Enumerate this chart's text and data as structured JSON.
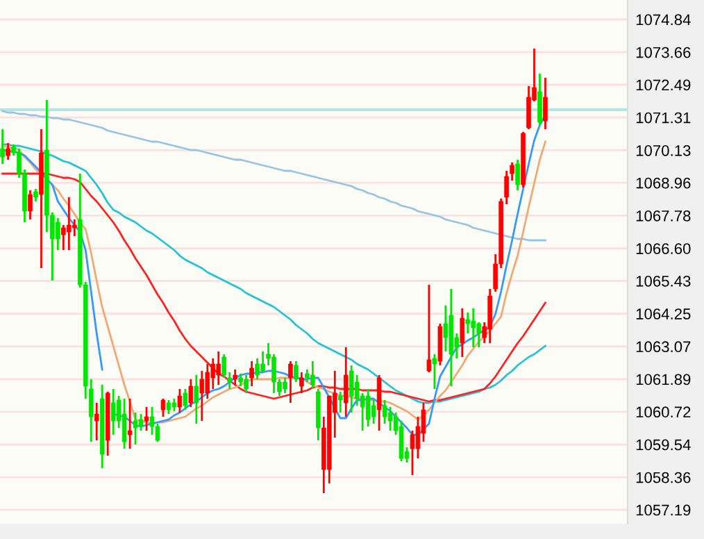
{
  "chart_data": {
    "type": "candlestick",
    "categories": [
      null,
      null,
      null,
      null,
      null,
      null,
      null,
      null,
      null,
      null,
      null,
      null,
      null,
      null,
      null,
      null,
      null,
      null,
      null,
      null,
      null,
      null,
      null,
      null,
      null,
      null,
      null,
      null,
      null,
      null,
      null,
      null,
      null,
      null,
      null,
      null,
      null,
      null,
      null,
      null,
      null,
      null,
      null,
      null,
      null,
      null,
      null,
      null,
      null,
      null,
      null,
      null,
      null,
      null,
      null,
      null,
      null,
      null,
      null,
      null,
      null,
      null,
      null,
      null,
      null,
      null,
      null,
      null,
      null,
      null,
      null,
      null,
      null,
      null,
      null,
      null,
      null,
      null,
      null,
      null,
      null,
      null,
      null,
      null,
      null,
      null,
      null,
      null,
      null,
      null,
      null,
      null,
      null,
      null,
      null,
      null,
      null,
      null,
      null
    ],
    "ohlc": [
      [
        1070.19,
        1070.89,
        1069.64,
        1069.89
      ],
      [
        1069.94,
        1070.39,
        1069.79,
        1070.19
      ],
      [
        1070.24,
        1070.34,
        1069.94,
        1070.04
      ],
      [
        1070.04,
        1070.19,
        1069.14,
        1069.29
      ],
      [
        1069.29,
        1069.44,
        1067.54,
        1067.94
      ],
      [
        1067.94,
        1068.69,
        1067.64,
        1068.54
      ],
      [
        1068.64,
        1068.74,
        1068.29,
        1068.44
      ],
      [
        1068.54,
        1070.89,
        1065.89,
        1070.04
      ],
      [
        1070.14,
        1071.94,
        1067.19,
        1067.79
      ],
      [
        1067.79,
        1067.89,
        1065.44,
        1066.94
      ],
      [
        1067.54,
        1067.69,
        1066.54,
        1066.94
      ],
      [
        1067.09,
        1067.44,
        1066.54,
        1067.34
      ],
      [
        1067.19,
        1068.44,
        1066.54,
        1067.44
      ],
      [
        1067.34,
        1067.64,
        1067.04,
        1067.44
      ],
      [
        1067.64,
        1069.29,
        1065.19,
        1065.29
      ],
      [
        1065.29,
        1065.39,
        1061.19,
        1061.64
      ],
      [
        1061.54,
        1061.89,
        1059.64,
        1060.54
      ],
      [
        1060.39,
        1061.04,
        1059.69,
        1060.64
      ],
      [
        1061.19,
        1061.69,
        1058.69,
        1059.19
      ],
      [
        1059.69,
        1061.44,
        1059.14,
        1061.39
      ],
      [
        1061.04,
        1061.54,
        1059.89,
        1060.39
      ],
      [
        1061.14,
        1061.29,
        1060.14,
        1060.39
      ],
      [
        1060.64,
        1061.19,
        1059.39,
        1059.64
      ],
      [
        1059.89,
        1061.19,
        1059.39,
        1060.04
      ],
      [
        1060.39,
        1060.69,
        1059.54,
        1060.14
      ],
      [
        1060.44,
        1060.64,
        1060.04,
        1060.19
      ],
      [
        1060.39,
        1060.89,
        1060.04,
        1060.54
      ],
      [
        1060.54,
        1060.89,
        1059.89,
        1060.19
      ],
      [
        1060.19,
        1060.29,
        1059.64,
        1059.69
      ],
      [
        1060.79,
        1061.19,
        1060.54,
        1061.14
      ],
      [
        1061.04,
        1061.14,
        1060.64,
        1060.79
      ],
      [
        1061.04,
        1061.19,
        1060.74,
        1060.89
      ],
      [
        1060.89,
        1061.54,
        1060.69,
        1061.29
      ],
      [
        1061.39,
        1061.54,
        1060.79,
        1060.94
      ],
      [
        1061.04,
        1061.89,
        1060.89,
        1061.64
      ],
      [
        1061.64,
        1062.04,
        1060.29,
        1061.04
      ],
      [
        1061.39,
        1062.19,
        1060.39,
        1061.89
      ],
      [
        1061.39,
        1062.44,
        1061.19,
        1062.14
      ],
      [
        1061.94,
        1062.64,
        1061.54,
        1062.44
      ],
      [
        1062.04,
        1062.89,
        1061.69,
        1062.44
      ],
      [
        1062.69,
        1062.79,
        1061.94,
        1062.04
      ],
      [
        1061.94,
        1062.14,
        1061.54,
        1061.79
      ],
      [
        1061.89,
        1062.24,
        1061.69,
        1062.04
      ],
      [
        1061.94,
        1062.09,
        1061.64,
        1061.79
      ],
      [
        1061.89,
        1062.04,
        1061.39,
        1061.54
      ],
      [
        1061.94,
        1062.54,
        1061.64,
        1062.29
      ],
      [
        1062.44,
        1062.64,
        1061.89,
        1062.04
      ],
      [
        1062.44,
        1062.89,
        1062.14,
        1062.19
      ],
      [
        1062.79,
        1063.19,
        1062.39,
        1062.64
      ],
      [
        1062.69,
        1062.79,
        1061.39,
        1061.79
      ],
      [
        1061.79,
        1061.89,
        1061.29,
        1061.44
      ],
      [
        1061.79,
        1061.94,
        1061.39,
        1061.54
      ],
      [
        1061.94,
        1062.54,
        1061.04,
        1062.44
      ],
      [
        1062.39,
        1062.54,
        1061.79,
        1061.89
      ],
      [
        1061.64,
        1062.14,
        1061.39,
        1061.94
      ],
      [
        1062.09,
        1062.24,
        1061.79,
        1061.94
      ],
      [
        1062.04,
        1062.54,
        1061.54,
        1061.69
      ],
      [
        1061.44,
        1061.54,
        1059.69,
        1060.14
      ],
      [
        1058.64,
        1060.54,
        1057.79,
        1060.14
      ],
      [
        1058.64,
        1061.29,
        1058.14,
        1061.29
      ],
      [
        1060.69,
        1062.19,
        1059.79,
        1061.39
      ],
      [
        1061.29,
        1061.44,
        1060.69,
        1061.14
      ],
      [
        1061.04,
        1063.04,
        1060.54,
        1062.04
      ],
      [
        1062.19,
        1062.39,
        1060.69,
        1061.29
      ],
      [
        1061.79,
        1062.04,
        1060.94,
        1061.19
      ],
      [
        1061.29,
        1061.39,
        1060.04,
        1060.89
      ],
      [
        1061.29,
        1061.54,
        1060.19,
        1060.44
      ],
      [
        1060.94,
        1061.14,
        1060.29,
        1060.54
      ],
      [
        1060.79,
        1062.04,
        1060.04,
        1061.94
      ],
      [
        1060.94,
        1061.14,
        1060.29,
        1060.54
      ],
      [
        1060.69,
        1060.89,
        1060.04,
        1060.39
      ],
      [
        1060.54,
        1060.69,
        1059.89,
        1060.04
      ],
      [
        1060.19,
        1060.39,
        1058.94,
        1059.04
      ],
      [
        1059.29,
        1059.44,
        1058.89,
        1059.04
      ],
      [
        1059.39,
        1060.04,
        1058.44,
        1059.89
      ],
      [
        1059.39,
        1060.54,
        1059.04,
        1060.19
      ],
      [
        1059.94,
        1061.04,
        1059.64,
        1060.79
      ],
      [
        1062.19,
        1065.29,
        1062.14,
        1062.59
      ],
      [
        1062.64,
        1062.79,
        1061.54,
        1062.44
      ],
      [
        1062.54,
        1063.89,
        1062.39,
        1063.79
      ],
      [
        1063.89,
        1064.54,
        1062.89,
        1063.39
      ],
      [
        1064.19,
        1065.14,
        1061.64,
        1062.79
      ],
      [
        1063.39,
        1063.54,
        1062.64,
        1063.04
      ],
      [
        1063.19,
        1064.44,
        1062.69,
        1064.09
      ],
      [
        1064.04,
        1064.29,
        1063.54,
        1063.89
      ],
      [
        1063.99,
        1064.44,
        1063.04,
        1063.74
      ],
      [
        1063.89,
        1063.94,
        1063.04,
        1063.54
      ],
      [
        1063.39,
        1063.94,
        1063.19,
        1063.79
      ],
      [
        1063.69,
        1065.14,
        1063.19,
        1064.89
      ],
      [
        1065.14,
        1066.39,
        1065.04,
        1066.04
      ],
      [
        1066.04,
        1068.39,
        1065.89,
        1068.29
      ],
      [
        1068.44,
        1069.39,
        1068.19,
        1069.19
      ],
      [
        1069.29,
        1069.69,
        1069.04,
        1069.59
      ],
      [
        1069.64,
        1069.79,
        1068.69,
        1068.89
      ],
      [
        1068.89,
        1070.79,
        1068.79,
        1070.74
      ],
      [
        1070.94,
        1072.44,
        1070.89,
        1072.04
      ],
      [
        1071.94,
        1073.79,
        1071.89,
        1072.39
      ],
      [
        1072.24,
        1072.89,
        1071.04,
        1071.14
      ],
      [
        1071.19,
        1072.74,
        1070.89,
        1072.04
      ]
    ],
    "colors": [
      "#00e600",
      "#ff0000",
      "#00e600",
      "#00e600",
      "#00e600",
      "#ff0000",
      "#00e600",
      "#ff0000",
      "#00e600",
      "#00e600",
      "#00e600",
      "#ff0000",
      "#ff0000",
      "#ff0000",
      "#00e600",
      "#00e600",
      "#00e600",
      "#ff0000",
      "#00e600",
      "#ff0000",
      "#00e600",
      "#00e600",
      "#00e600",
      "#ff0000",
      "#00e600",
      "#00e600",
      "#ff0000",
      "#00e600",
      "#00e600",
      "#ff0000",
      "#00e600",
      "#00e600",
      "#ff0000",
      "#00e600",
      "#ff0000",
      "#00e600",
      "#ff0000",
      "#ff0000",
      "#ff0000",
      "#ff0000",
      "#00e600",
      "#00e600",
      "#ff0000",
      "#00e600",
      "#00e600",
      "#ff0000",
      "#00e600",
      "#00e600",
      "#00e600",
      "#00e600",
      "#00e600",
      "#00e600",
      "#ff0000",
      "#00e600",
      "#ff0000",
      "#00e600",
      "#00e600",
      "#00e600",
      "#ff0000",
      "#ff0000",
      "#ff0000",
      "#00e600",
      "#ff0000",
      "#00e600",
      "#00e600",
      "#00e600",
      "#00e600",
      "#00e600",
      "#ff0000",
      "#00e600",
      "#00e600",
      "#00e600",
      "#00e600",
      "#00e600",
      "#ff0000",
      "#ff0000",
      "#ff0000",
      "#ff0000",
      "#00e600",
      "#ff0000",
      "#00e600",
      "#00e600",
      "#00e600",
      "#ff0000",
      "#00e600",
      "#00e600",
      "#00e600",
      "#ff0000",
      "#ff0000",
      "#ff0000",
      "#ff0000",
      "#ff0000",
      "#ff0000",
      "#00e600",
      "#ff0000",
      "#ff0000",
      "#ff0000",
      "#00e600",
      "#ff0000"
    ],
    "series": [
      {
        "type": "line",
        "color": "#98c4e0",
        "values": [
          1071.54,
          1071.49,
          1071.49,
          1071.44,
          1071.44,
          1071.39,
          1071.39,
          1071.34,
          1071.34,
          1071.29,
          1071.29,
          1071.24,
          1071.24,
          1071.19,
          1071.14,
          1071.09,
          1071.04,
          1070.99,
          1070.94,
          1070.84,
          1070.79,
          1070.74,
          1070.69,
          1070.64,
          1070.59,
          1070.54,
          1070.49,
          1070.44,
          1070.44,
          1070.39,
          1070.34,
          1070.29,
          1070.24,
          1070.19,
          1070.14,
          1070.14,
          1070.09,
          1070.04,
          1069.99,
          1069.94,
          1069.89,
          1069.84,
          1069.79,
          1069.79,
          1069.74,
          1069.69,
          1069.64,
          1069.59,
          1069.54,
          1069.49,
          1069.44,
          1069.39,
          1069.39,
          1069.34,
          1069.29,
          1069.24,
          1069.19,
          1069.14,
          1069.09,
          1069.04,
          1068.99,
          1068.94,
          1068.89,
          1068.84,
          1068.74,
          1068.69,
          1068.59,
          1068.54,
          1068.44,
          1068.39,
          1068.29,
          1068.24,
          1068.14,
          1068.09,
          1068.04,
          1067.94,
          1067.89,
          1067.84,
          1067.79,
          1067.74,
          1067.64,
          1067.59,
          1067.54,
          1067.49,
          1067.44,
          1067.34,
          1067.29,
          1067.24,
          1067.19,
          1067.14,
          1067.09,
          1067.04,
          1066.99,
          1066.94,
          1066.94,
          1066.89,
          1066.89,
          1066.89,
          1066.89
        ]
      },
      {
        "type": "line",
        "color": "#22c4d4",
        "values": [
          1070.34,
          1070.34,
          1070.29,
          1070.29,
          1070.24,
          1070.19,
          1070.14,
          1070.09,
          1069.99,
          1069.94,
          1069.84,
          1069.74,
          1069.69,
          1069.59,
          1069.49,
          1069.39,
          1069.14,
          1068.89,
          1068.59,
          1068.24,
          1067.99,
          1067.89,
          1067.74,
          1067.64,
          1067.54,
          1067.39,
          1067.24,
          1067.14,
          1066.99,
          1066.84,
          1066.69,
          1066.54,
          1066.34,
          1066.19,
          1066.09,
          1065.99,
          1065.89,
          1065.74,
          1065.64,
          1065.54,
          1065.44,
          1065.34,
          1065.24,
          1065.14,
          1064.99,
          1064.89,
          1064.79,
          1064.69,
          1064.59,
          1064.49,
          1064.34,
          1064.19,
          1064.04,
          1063.84,
          1063.69,
          1063.54,
          1063.34,
          1063.19,
          1063.09,
          1062.99,
          1062.89,
          1062.79,
          1062.69,
          1062.59,
          1062.44,
          1062.34,
          1062.24,
          1062.09,
          1061.94,
          1061.79,
          1061.64,
          1061.49,
          1061.39,
          1061.29,
          1061.19,
          1061.09,
          1061.04,
          1061.04,
          1061.09,
          1061.09,
          1061.14,
          1061.19,
          1061.24,
          1061.29,
          1061.34,
          1061.39,
          1061.44,
          1061.54,
          1061.59,
          1061.69,
          1061.84,
          1062.04,
          1062.19,
          1062.39,
          1062.54,
          1062.69,
          1062.79,
          1062.94,
          1063.09
        ]
      },
      {
        "type": "line",
        "color": "#ff2020",
        "values": [
          1069.29,
          1069.29,
          1069.29,
          1069.29,
          1069.29,
          1069.29,
          1069.29,
          1069.29,
          1069.29,
          1069.24,
          1069.19,
          1069.14,
          1069.14,
          1069.09,
          1068.99,
          1068.74,
          1068.49,
          1068.29,
          1068.04,
          1067.79,
          1067.54,
          1067.24,
          1066.89,
          1066.59,
          1066.24,
          1065.94,
          1065.64,
          1065.29,
          1064.94,
          1064.64,
          1064.29,
          1063.99,
          1063.64,
          1063.34,
          1063.09,
          1062.89,
          1062.69,
          1062.49,
          1062.29,
          1062.09,
          1061.99,
          1061.84,
          1061.69,
          1061.54,
          1061.44,
          1061.39,
          1061.34,
          1061.29,
          1061.24,
          1061.19,
          1061.24,
          1061.29,
          1061.34,
          1061.39,
          1061.44,
          1061.49,
          1061.59,
          1061.64,
          1061.64,
          1061.59,
          1061.59,
          1061.54,
          1061.54,
          1061.54,
          1061.54,
          1061.49,
          1061.49,
          1061.49,
          1061.49,
          1061.44,
          1061.44,
          1061.39,
          1061.34,
          1061.29,
          1061.24,
          1061.19,
          1061.14,
          1061.09,
          1061.14,
          1061.14,
          1061.19,
          1061.24,
          1061.29,
          1061.34,
          1061.39,
          1061.44,
          1061.49,
          1061.54,
          1061.74,
          1061.99,
          1062.29,
          1062.59,
          1062.89,
          1063.19,
          1063.44,
          1063.74,
          1064.04,
          1064.34,
          1064.64
        ]
      },
      {
        "type": "line",
        "color": "#f0a878",
        "values": [
          1070.29,
          1070.24,
          1070.24,
          1070.14,
          1069.89,
          1069.69,
          1069.44,
          1069.29,
          1069.09,
          1068.89,
          1068.69,
          1068.39,
          1068.14,
          1067.84,
          1067.54,
          1067.29,
          1066.44,
          1065.44,
          1064.49,
          1063.79,
          1063.09,
          1062.39,
          1061.69,
          1061.09,
          1060.44,
          1060.39,
          1060.34,
          1060.29,
          1060.34,
          1060.34,
          1060.39,
          1060.44,
          1060.49,
          1060.54,
          1060.69,
          1060.84,
          1060.94,
          1061.09,
          1061.24,
          1061.34,
          1061.44,
          1061.54,
          1061.59,
          1061.69,
          1061.79,
          1061.89,
          1061.89,
          1061.89,
          1061.89,
          1061.89,
          1061.94,
          1061.94,
          1061.94,
          1061.94,
          1061.94,
          1061.79,
          1061.69,
          1061.59,
          1061.54,
          1061.44,
          1061.39,
          1061.29,
          1061.29,
          1061.24,
          1061.19,
          1061.19,
          1061.14,
          1061.14,
          1061.09,
          1061.09,
          1061.04,
          1060.94,
          1060.84,
          1060.74,
          1060.59,
          1060.44,
          1060.59,
          1060.79,
          1061.04,
          1061.29,
          1061.49,
          1061.79,
          1062.09,
          1062.39,
          1062.74,
          1062.99,
          1063.24,
          1063.44,
          1063.64,
          1063.89,
          1064.14,
          1064.99,
          1065.69,
          1066.34,
          1067.19,
          1068.09,
          1068.94,
          1069.79,
          1070.44
        ]
      },
      {
        "type": "line",
        "color": "#3399ff",
        "values": [
          1070.14,
          1070.09,
          1070.09,
          1070.04,
          1069.94,
          1069.74,
          1069.54,
          1069.34,
          1069.09,
          1068.89,
          1068.29,
          1067.99,
          1067.69,
          1067.44,
          1067.19,
          1066.54,
          1065.04,
          1063.54,
          1062.24,
          null,
          1060.64,
          1060.59,
          1060.54,
          1060.39,
          1060.24,
          1060.19,
          1060.24,
          1060.29,
          1060.34,
          1060.39,
          1060.44,
          1060.59,
          1060.69,
          1060.84,
          1060.99,
          1061.09,
          1061.24,
          1061.39,
          1061.49,
          1061.54,
          1061.64,
          1061.79,
          1061.94,
          1062.04,
          1062.09,
          1062.09,
          1062.14,
          1062.14,
          1062.19,
          1062.19,
          1062.14,
          1062.09,
          1061.99,
          1061.94,
          1061.89,
          1061.89,
          1061.94,
          1061.94,
          1061.59,
          1061.24,
          1060.84,
          1060.49,
          1060.49,
          1060.84,
          1061.14,
          1061.14,
          1061.19,
          1061.19,
          1061.04,
          1060.89,
          1060.74,
          1060.54,
          1060.34,
          1060.14,
          1059.89,
          1059.89,
          1060.09,
          1060.29,
          1061.19,
          1061.99,
          1062.34,
          1062.69,
          1063.04,
          1063.14,
          1063.29,
          1063.39,
          1063.54,
          1063.64,
          1063.79,
          1064.24,
          1065.04,
          1065.99,
          1066.89,
          1067.84,
          1068.74,
          1069.64,
          1070.49,
          1071.04,
          1071.39
        ]
      }
    ],
    "ylim": [
      1056.69,
      1075.54
    ],
    "yticks": [
      1074.84,
      1073.66,
      1072.49,
      1071.31,
      1070.13,
      1068.96,
      1067.78,
      {
        "value": 1066.6,
        "label": "1066.60"
      },
      1065.43,
      1064.25,
      1063.07,
      1061.89,
      1060.72,
      1059.54,
      1058.36,
      1057.19
    ],
    "tick_labels": "y",
    "grid": "y",
    "ref_lines": [
      {
        "axis": "y",
        "value": 1071.59,
        "color": "#b4e6e4"
      }
    ]
  }
}
